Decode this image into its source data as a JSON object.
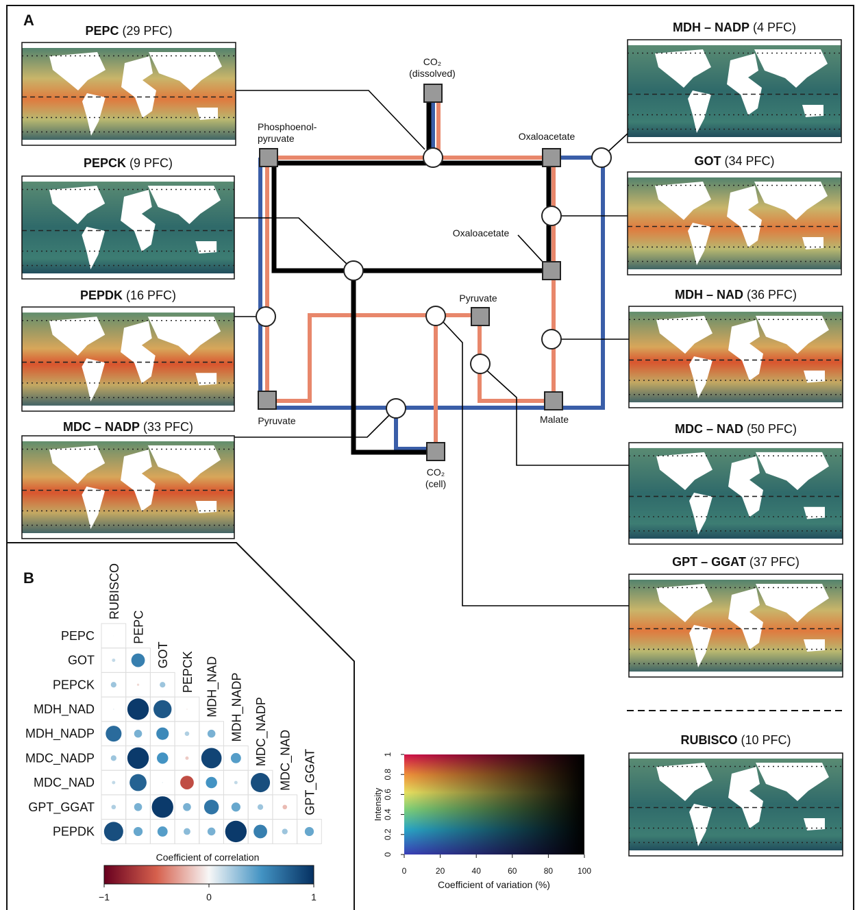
{
  "panels": {
    "a": "A",
    "b": "B"
  },
  "maps": [
    {
      "name": "PEPC",
      "count": "(29 PFC)"
    },
    {
      "name": "PEPCK",
      "count": "(9 PFC)"
    },
    {
      "name": "PEPDK",
      "count": "(16 PFC)"
    },
    {
      "name": "MDC – NADP",
      "count": "(33 PFC)"
    },
    {
      "name": "MDH – NADP",
      "count": "(4 PFC)"
    },
    {
      "name": "GOT",
      "count": "(34 PFC)"
    },
    {
      "name": "MDH – NAD",
      "count": "(36 PFC)"
    },
    {
      "name": "MDC – NAD",
      "count": "(50 PFC)"
    },
    {
      "name": "GPT – GGAT",
      "count": "(37 PFC)"
    },
    {
      "name": "RUBISCO",
      "count": "(10 PFC)"
    }
  ],
  "pathway_labels": [
    {
      "lines": [
        "CO₂",
        "(dissolved)"
      ]
    },
    {
      "lines": [
        "Phosphoenol-",
        "pyruvate"
      ]
    },
    {
      "lines": [
        "Oxaloacetate"
      ]
    },
    {
      "lines": [
        "Oxaloacetate"
      ]
    },
    {
      "lines": [
        "Pyruvate"
      ]
    },
    {
      "lines": [
        "Pyruvate"
      ]
    },
    {
      "lines": [
        "Malate"
      ]
    },
    {
      "lines": [
        "CO₂",
        "(cell)"
      ]
    }
  ],
  "correlation": {
    "rows": [
      "PEPC",
      "GOT",
      "PEPCK",
      "MDH_NAD",
      "MDH_NADP",
      "MDC_NADP",
      "MDC_NAD",
      "GPT_GGAT",
      "PEPDK"
    ],
    "columns": [
      "RUBISCO",
      "PEPC",
      "GOT",
      "PEPCK",
      "MDH_NAD",
      "MDH_NADP",
      "MDC_NADP",
      "MDC_NAD",
      "GPT_GGAT"
    ],
    "values": [
      [
        0.02
      ],
      [
        0.15,
        0.6
      ],
      [
        0.25,
        -0.1,
        0.25
      ],
      [
        0.05,
        0.95,
        0.8,
        -0.05
      ],
      [
        0.7,
        0.35,
        0.55,
        0.2,
        0.35
      ],
      [
        0.25,
        0.95,
        0.5,
        -0.15,
        0.9,
        0.45
      ],
      [
        0.15,
        0.75,
        0.05,
        -0.6,
        0.5,
        0.15,
        0.85
      ],
      [
        0.2,
        0.35,
        0.95,
        0.35,
        0.65,
        0.4,
        0.25,
        -0.2
      ],
      [
        0.85,
        0.4,
        0.45,
        0.3,
        0.35,
        0.95,
        0.6,
        0.25,
        0.4
      ]
    ],
    "colorbar": {
      "title": "Coefficient of correlation",
      "lim": [
        -1,
        1
      ],
      "ticks": [
        {
          "value": -1,
          "label": "−1"
        },
        0,
        1
      ]
    }
  },
  "cv_legend": {
    "ylabel": "Intensity",
    "xlabel": "Coefficient of variation (%)",
    "xlim": [
      0,
      100
    ],
    "xticks": [
      0,
      20,
      40,
      60,
      80,
      100
    ],
    "ylim": [
      0,
      1
    ],
    "yticks": [
      0,
      0.2,
      0.4,
      0.6,
      0.8,
      1
    ]
  }
}
